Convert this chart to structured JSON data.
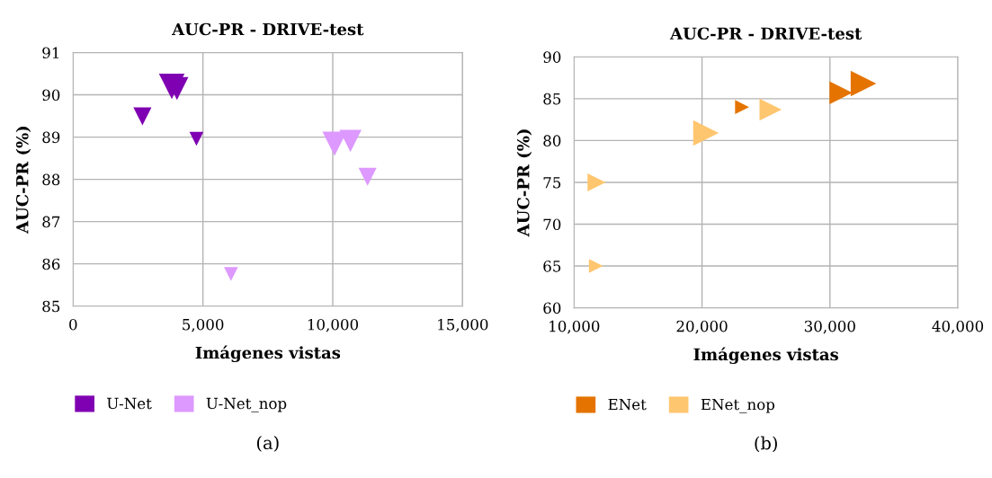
{
  "chart_data": [
    {
      "type": "bubble",
      "title": "AUC-PR - DRIVE-test",
      "xlabel": "Imágenes vistas",
      "ylabel": "AUC-PR (%)",
      "annotations": [
        "(a)"
      ],
      "xlim": [
        0,
        15000
      ],
      "xticks": [
        0,
        {
          "value": 5000,
          "label": "5,000"
        },
        {
          "value": 10000,
          "label": "10,000"
        },
        {
          "value": 15000,
          "label": "15,000"
        }
      ],
      "ylim": [
        85,
        91
      ],
      "yticks": [
        85,
        86,
        87,
        88,
        89,
        90,
        91
      ],
      "grid": true,
      "legend": "bottom",
      "marker": "triangle",
      "series": [
        {
          "name": "U-Net",
          "color": "#7f00b2",
          "x": [
            3800,
            4000,
            2670,
            4750
          ],
          "values": [
            90.2,
            90.15,
            89.49,
            88.96
          ],
          "sizes": [
            1,
            0.8,
            0.5,
            0.3
          ]
        },
        {
          "name": "U-Net_nop",
          "color": "#dd99ff",
          "x": [
            10070,
            10680,
            11340,
            6080
          ],
          "values": [
            88.84,
            88.91,
            88.06,
            85.76
          ],
          "sizes": [
            0.9,
            0.75,
            0.5,
            0.3
          ]
        }
      ]
    },
    {
      "type": "bubble",
      "title": "AUC-PR - DRIVE-test",
      "xlabel": "Imágenes vistas",
      "ylabel": "AUC-PR (%)",
      "annotations": [
        "(b)"
      ],
      "xlim": [
        10000,
        40000
      ],
      "xticks": [
        {
          "value": 10000,
          "label": "10,000"
        },
        {
          "value": 20000,
          "label": "20,000"
        },
        {
          "value": 30000,
          "label": "30,000"
        },
        {
          "value": 40000,
          "label": "40,000"
        }
      ],
      "ylim": [
        60,
        90
      ],
      "yticks": [
        60,
        65,
        70,
        75,
        80,
        85,
        90
      ],
      "grid": true,
      "legend": "bottom",
      "marker": "triangle",
      "series": [
        {
          "name": "ENet",
          "color": "#e57300",
          "x": [
            32620,
            30860,
            23130
          ],
          "values": [
            86.8,
            85.7,
            84.0
          ],
          "sizes": [
            1,
            0.8,
            0.3
          ]
        },
        {
          "name": "ENet_nop",
          "color": "#ffc670",
          "x": [
            20310,
            25360,
            11760,
            11710
          ],
          "values": [
            80.9,
            83.7,
            75.0,
            65.0
          ],
          "sizes": [
            1,
            0.75,
            0.5,
            0.3
          ]
        }
      ]
    }
  ]
}
